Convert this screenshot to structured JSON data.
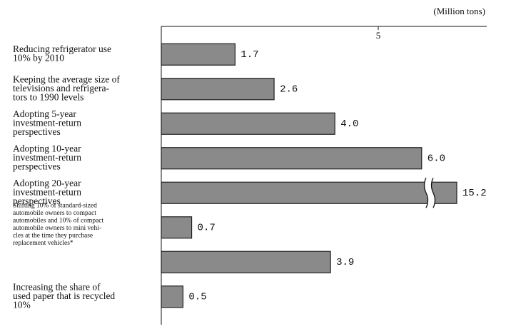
{
  "chart_data": {
    "type": "barh",
    "unit_label": "(Million tons)",
    "categories": [
      "Reducing refrigerator use\n10% by 2010",
      "Keeping the average size of\ntelevisions and refrigera-\ntors to 1990 levels",
      "Adopting 5-year\ninvestment-return\nperspectives",
      "Adopting 10-year\ninvestment-return\nperspectives",
      "Adopting 20-year\ninvestment-return\nperspectives",
      "Shifting 10% of standard-sized\nautomobile owners to compact\nautomobiles and 10% of compact\nautomobile owners to mini vehi-\ncles at the time they purchase\nreplacement vehicles*",
      "",
      "Increasing the share of\nused paper that is recycled\n10%"
    ],
    "values": [
      1.7,
      2.6,
      4.0,
      6.0,
      15.2,
      0.7,
      3.9,
      0.5
    ],
    "value_labels": [
      "1.7",
      "2.6",
      "4.0",
      "6.0",
      "15.2",
      "0.7",
      "3.9",
      "0.5"
    ],
    "color": "#8a8a8a",
    "xlim": [
      0,
      7.5
    ],
    "xticks": [
      5
    ],
    "axis_break": true
  }
}
